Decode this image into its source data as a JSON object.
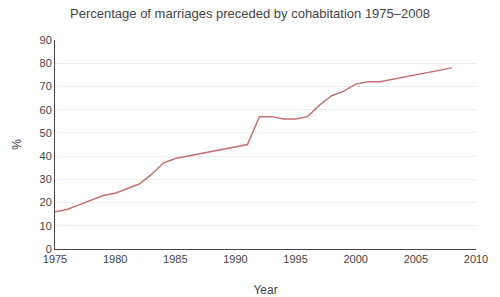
{
  "chart_data": {
    "type": "line",
    "title": "Percentage of marriages preceded by cohabitation 1975–2008",
    "xlabel": "Year",
    "ylabel": "%",
    "x": [
      1975,
      1976,
      1977,
      1978,
      1979,
      1980,
      1981,
      1982,
      1983,
      1984,
      1985,
      1986,
      1987,
      1988,
      1989,
      1990,
      1991,
      1992,
      1993,
      1994,
      1995,
      1996,
      1997,
      1998,
      1999,
      2000,
      2001,
      2002,
      2003,
      2004,
      2005,
      2006,
      2007,
      2008
    ],
    "values": [
      16,
      17,
      19,
      21,
      23,
      24,
      26,
      28,
      32,
      37,
      39,
      40,
      41,
      42,
      43,
      44,
      45,
      57,
      57,
      56,
      56,
      57,
      62,
      66,
      68,
      71,
      72,
      72,
      73,
      74,
      75,
      76,
      77,
      78
    ],
    "color": "#c87070",
    "xlim": [
      1975,
      2010
    ],
    "ylim": [
      0,
      90
    ],
    "xticks": [
      1975,
      1980,
      1985,
      1990,
      1995,
      2000,
      2005,
      2010
    ],
    "yticks": [
      0,
      10,
      20,
      30,
      40,
      50,
      60,
      70,
      80,
      90
    ],
    "grid": true
  }
}
